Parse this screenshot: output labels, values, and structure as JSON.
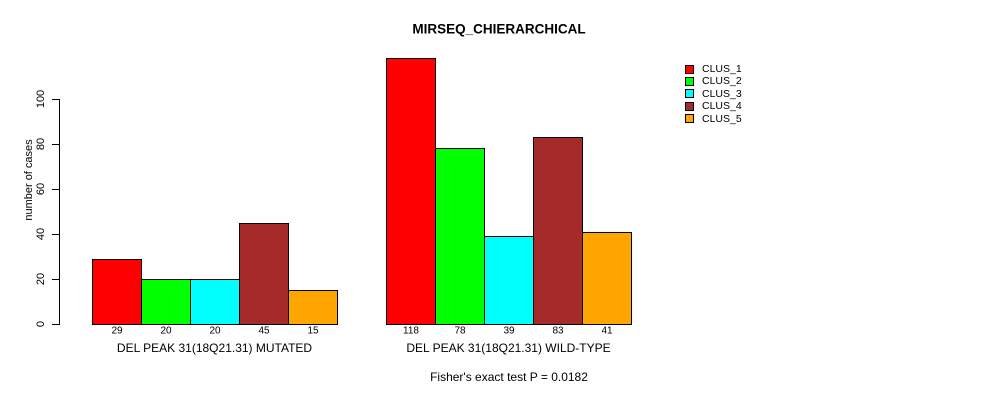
{
  "title": "MIRSEQ_CHIERARCHICAL",
  "footer": "Fisher's exact test P = 0.0182",
  "chart_data": {
    "type": "bar",
    "title": "MIRSEQ_CHIERARCHICAL",
    "xlabel": "",
    "ylabel": "number of cases",
    "ylim": [
      0,
      120
    ],
    "yticks": [
      0,
      20,
      40,
      60,
      80,
      100
    ],
    "grid": false,
    "legend_position": "top-right",
    "bar_value_labels": true,
    "categories": [
      "DEL PEAK 31(18Q21.31) MUTATED",
      "DEL PEAK 31(18Q21.31) WILD-TYPE"
    ],
    "series": [
      {
        "name": "CLUS_1",
        "color": "#FF0000",
        "values": [
          29,
          118
        ]
      },
      {
        "name": "CLUS_2",
        "color": "#00FF00",
        "values": [
          20,
          78
        ]
      },
      {
        "name": "CLUS_3",
        "color": "#00FFFF",
        "values": [
          20,
          39
        ]
      },
      {
        "name": "CLUS_4",
        "color": "#A52A2A",
        "values": [
          45,
          83
        ]
      },
      {
        "name": "CLUS_5",
        "color": "#FFA500",
        "values": [
          15,
          41
        ]
      }
    ],
    "annotation": "Fisher's exact test P = 0.0182"
  }
}
